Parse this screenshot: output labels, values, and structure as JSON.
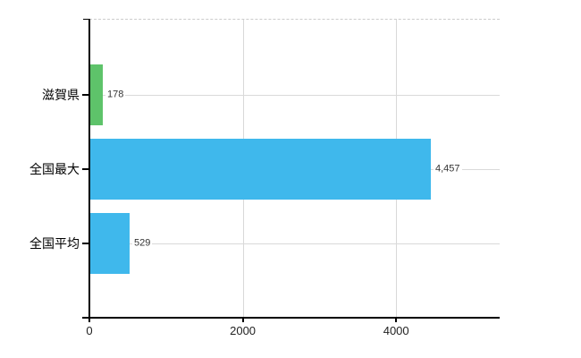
{
  "chart_data": {
    "type": "bar",
    "orientation": "horizontal",
    "title": "",
    "xlabel": "",
    "ylabel": "",
    "categories": [
      "滋賀県",
      "全国最大",
      "全国平均"
    ],
    "values": [
      178,
      4457,
      529
    ],
    "value_labels": [
      "178",
      "4,457",
      "529"
    ],
    "bar_colors": [
      "#5ec36a",
      "#3fb8ec",
      "#3fb8ec"
    ],
    "xlim": [
      0,
      5350
    ],
    "x_ticks": [
      0,
      2000,
      4000
    ],
    "x_tick_labels": [
      "0",
      "2000",
      "4000"
    ],
    "grid": true,
    "legend": "none",
    "style": {
      "background_color": "#ffffff",
      "gridline_color": "#d9d9d9",
      "top_border_color": "#cccccc",
      "axis_color": "#000000",
      "category_text_color": "#000000",
      "value_text_color": "#333333",
      "tick_text_color": "#222222"
    }
  }
}
